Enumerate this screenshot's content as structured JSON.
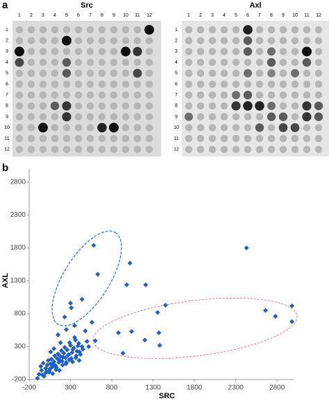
{
  "panel_a": {
    "label": "a",
    "blots": [
      {
        "title": "Src",
        "columns": [
          "1",
          "2",
          "3",
          "4",
          "5",
          "6",
          "7",
          "8",
          "9",
          "10",
          "11",
          "12"
        ],
        "rows": [
          "1",
          "2",
          "3",
          "4",
          "5",
          "6",
          "7",
          "8",
          "9",
          "10",
          "11",
          "12"
        ]
      },
      {
        "title": "Axl",
        "columns": [
          "1",
          "2",
          "3",
          "4",
          "5",
          "6",
          "7",
          "8",
          "9",
          "10",
          "11",
          "12"
        ],
        "rows": [
          "1",
          "2",
          "3",
          "4",
          "5",
          "6",
          "7",
          "8",
          "9",
          "10",
          "11",
          "12"
        ]
      }
    ]
  },
  "panel_b_label": "b",
  "chart_data": {
    "type": "scatter",
    "x_label": "SRC",
    "y_label": "AXL",
    "color": "#1f5fc8",
    "xlim": [
      -200,
      3000
    ],
    "ylim": [
      -200,
      3000
    ],
    "xticks": [
      -200,
      300,
      800,
      1300,
      1800,
      2300,
      2800
    ],
    "yticks": [
      -200,
      300,
      800,
      1300,
      1800,
      2300,
      2800
    ],
    "x": [
      580,
      2430,
      1020,
      630,
      980,
      1210,
      1450,
      440,
      300,
      310,
      2660,
      2980,
      2780,
      2980,
      1355,
      230,
      560,
      1040,
      880,
      1370,
      600,
      1200,
      1380,
      935,
      480,
      -80,
      -50,
      -20,
      0,
      20,
      40,
      60,
      80,
      100,
      120,
      140,
      160,
      180,
      200,
      220,
      240,
      260,
      280,
      300,
      320,
      340,
      360,
      380,
      400,
      420,
      440,
      -60,
      -30,
      10,
      30,
      50,
      70,
      90,
      110,
      130,
      150,
      170,
      190,
      210,
      230,
      250,
      270,
      290,
      310,
      330,
      350,
      370,
      390,
      410,
      450,
      500,
      -100,
      -40,
      0,
      45,
      85,
      125,
      165,
      205,
      245,
      285,
      325,
      365,
      405,
      520,
      150,
      250,
      350,
      180,
      60,
      100
    ],
    "values": [
      1840,
      1800,
      1570,
      1400,
      1240,
      1240,
      930,
      1020,
      960,
      890,
      850,
      920,
      760,
      680,
      820,
      750,
      670,
      530,
      510,
      510,
      390,
      400,
      320,
      200,
      540,
      -120,
      -60,
      -150,
      -30,
      20,
      -90,
      40,
      -10,
      70,
      10,
      120,
      60,
      150,
      80,
      200,
      130,
      250,
      180,
      320,
      210,
      280,
      400,
      230,
      350,
      180,
      300,
      0,
      50,
      -80,
      90,
      -40,
      110,
      30,
      160,
      -20,
      190,
      90,
      240,
      140,
      290,
      60,
      170,
      360,
      120,
      260,
      440,
      160,
      310,
      220,
      260,
      380,
      -180,
      -130,
      -100,
      -70,
      -110,
      -50,
      -60,
      20,
      40,
      100,
      70,
      130,
      90,
      300,
      480,
      560,
      620,
      360,
      220,
      270
    ]
  }
}
